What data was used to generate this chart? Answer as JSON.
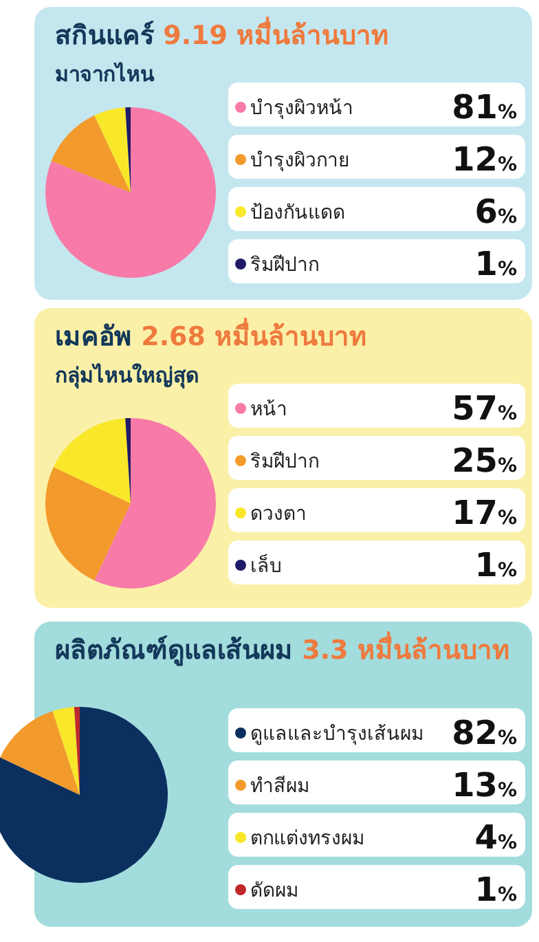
{
  "chart_data": [
    {
      "type": "pie",
      "title": "สกินแคร์ 9.19 หมื่นล้านบาท",
      "subtitle": "มาจากไหน",
      "categories": [
        "บำรุงผิวหน้า",
        "บำรุงผิวกาย",
        "ป้องกันแดด",
        "ริมฝีปาก"
      ],
      "values": [
        81,
        12,
        6,
        1
      ],
      "colors": [
        "#f77aa8",
        "#f39a2c",
        "#f9e72a",
        "#1e1a66"
      ],
      "value_labels": [
        "81%",
        "12%",
        "6%",
        "1%"
      ],
      "legend": "right"
    },
    {
      "type": "pie",
      "title": "เมคอัพ 2.68 หมื่นล้านบาท",
      "subtitle": "กลุ่มไหนใหญ่สุด",
      "categories": [
        "หน้า",
        "ริมฝีปาก",
        "ดวงตา",
        "เล็บ"
      ],
      "values": [
        57,
        25,
        17,
        1
      ],
      "colors": [
        "#f77aa8",
        "#f39a2c",
        "#f9e72a",
        "#1e1a66"
      ],
      "value_labels": [
        "57%",
        "25%",
        "17%",
        "1%"
      ],
      "legend": "right"
    },
    {
      "type": "pie",
      "title": "ผลิตภัณฑ์ดูแลเส้นผม 3.3 หมื่นล้านบาท",
      "categories": [
        "ดูแลและบำรุงเส้นผม",
        "ทำสีผม",
        "ตกแต่งทรงผม",
        "ดัดผม"
      ],
      "values": [
        82,
        13,
        4,
        1
      ],
      "colors": [
        "#0b3060",
        "#f39a2c",
        "#f9e72a",
        "#c0282c"
      ],
      "value_labels": [
        "82%",
        "13%",
        "4%",
        "1%"
      ],
      "legend": "right"
    }
  ]
}
